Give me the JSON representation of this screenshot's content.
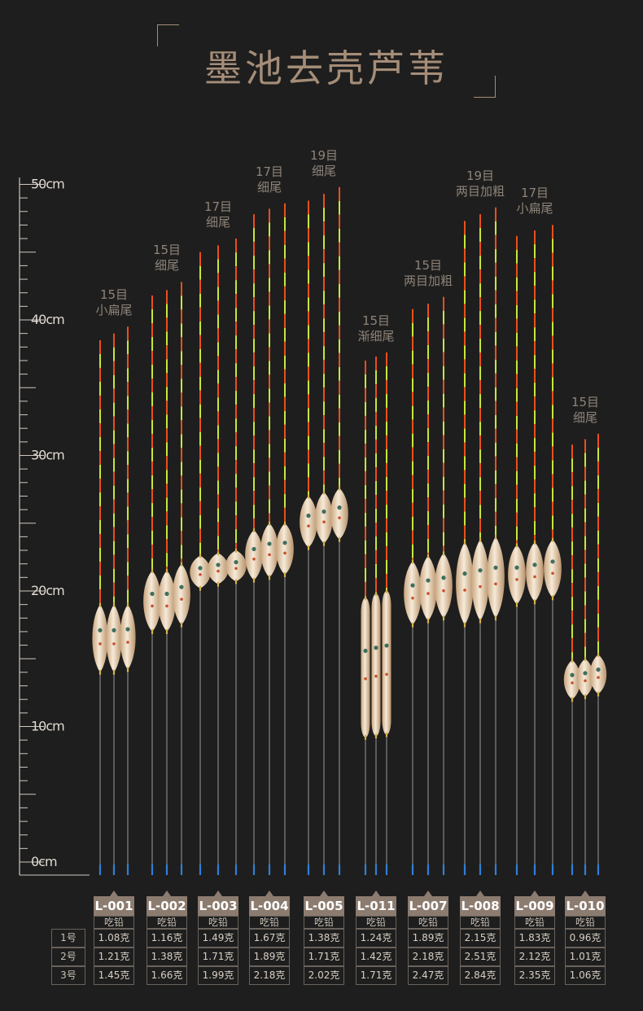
{
  "title": "墨池去壳芦苇",
  "ruler": {
    "labels": [
      "50cm",
      "40cm",
      "30cm",
      "20cm",
      "10cm",
      "0cm"
    ],
    "values": [
      50,
      40,
      30,
      20,
      10,
      0
    ]
  },
  "colors": {
    "background": "#1e1e1e",
    "accent": "#a58d78",
    "tag": "#8c7b6f",
    "tip_orange": "#e8501c",
    "tip_green": "#c8e63a",
    "body": "#e8d2b4",
    "stem": "#6b6b6b",
    "base": "#2f7fd8"
  },
  "table": {
    "header_label": "吃铅",
    "row_labels": [
      "1号",
      "2号",
      "3号"
    ]
  },
  "floats": [
    {
      "code": "L-001",
      "spec1": "15目",
      "spec2": "小扁尾",
      "weights": [
        "1.08克",
        "1.21克",
        "1.45克"
      ],
      "top_cm": [
        38.5,
        39,
        39.5
      ],
      "body_top_cm": [
        19,
        19,
        19
      ],
      "body_bot_cm": [
        14,
        14,
        14.2
      ],
      "shape": "long-oval"
    },
    {
      "code": "L-002",
      "spec1": "15目",
      "spec2": "细尾",
      "weights": [
        "1.16克",
        "1.38克",
        "1.66克"
      ],
      "top_cm": [
        41.8,
        42.2,
        42.8
      ],
      "body_top_cm": [
        21.5,
        21.5,
        22
      ],
      "body_bot_cm": [
        17,
        17,
        17.5
      ],
      "shape": "oval"
    },
    {
      "code": "L-003",
      "spec1": "17目",
      "spec2": "细尾",
      "weights": [
        "1.49克",
        "1.71克",
        "1.99克"
      ],
      "top_cm": [
        45,
        45.5,
        46
      ],
      "body_top_cm": [
        22.6,
        22.8,
        23
      ],
      "body_bot_cm": [
        20.2,
        20.5,
        20.7
      ],
      "shape": "round"
    },
    {
      "code": "L-004",
      "spec1": "17目",
      "spec2": "细尾",
      "weights": [
        "1.67克",
        "1.89克",
        "2.18克"
      ],
      "top_cm": [
        47.8,
        48.2,
        48.6
      ],
      "body_top_cm": [
        24.5,
        25,
        25
      ],
      "body_bot_cm": [
        20.8,
        21,
        21.2
      ],
      "shape": "oval"
    },
    {
      "code": "L-005",
      "spec1": "19目",
      "spec2": "细尾",
      "weights": [
        "1.38克",
        "1.71克",
        "2.02克"
      ],
      "top_cm": [
        48.8,
        49.3,
        49.8
      ],
      "body_top_cm": [
        27,
        27.3,
        27.6
      ],
      "body_bot_cm": [
        23.2,
        23.5,
        23.8
      ],
      "shape": "oval"
    },
    {
      "code": "L-011",
      "spec1": "15目",
      "spec2": "渐细尾",
      "weights": [
        "1.24克",
        "1.42克",
        "1.71克"
      ],
      "top_cm": [
        37,
        37.3,
        37.6
      ],
      "body_top_cm": [
        19.5,
        19.8,
        20
      ],
      "body_bot_cm": [
        9.2,
        9.3,
        9.4
      ],
      "shape": "slim"
    },
    {
      "code": "L-007",
      "spec1": "15目",
      "spec2": "两目加粗",
      "weights": [
        "1.89克",
        "2.18克",
        "2.47克"
      ],
      "top_cm": [
        40.8,
        41.2,
        41.7
      ],
      "body_top_cm": [
        22.2,
        22.6,
        22.8
      ],
      "body_bot_cm": [
        17.5,
        17.8,
        18
      ],
      "shape": "oval"
    },
    {
      "code": "L-008",
      "spec1": "19目",
      "spec2": "两目加粗",
      "weights": [
        "2.15克",
        "2.51克",
        "2.84克"
      ],
      "top_cm": [
        47.3,
        47.8,
        48.3
      ],
      "body_top_cm": [
        23.6,
        23.8,
        24
      ],
      "body_bot_cm": [
        17.5,
        17.8,
        18
      ],
      "shape": "oval"
    },
    {
      "code": "L-009",
      "spec1": "17目",
      "spec2": "小扁尾",
      "weights": [
        "1.83克",
        "2.12克",
        "2.35克"
      ],
      "top_cm": [
        46.2,
        46.6,
        47
      ],
      "body_top_cm": [
        23.4,
        23.6,
        23.8
      ],
      "body_bot_cm": [
        19,
        19.2,
        19.5
      ],
      "shape": "oval"
    },
    {
      "code": "L-010",
      "spec1": "15目",
      "spec2": "细尾",
      "weights": [
        "0.96克",
        "1.01克",
        "1.06克"
      ],
      "top_cm": [
        30.8,
        31.2,
        31.6
      ],
      "body_top_cm": [
        14.9,
        15,
        15.3
      ],
      "body_bot_cm": [
        12,
        12.2,
        12.4
      ],
      "shape": "small"
    }
  ]
}
